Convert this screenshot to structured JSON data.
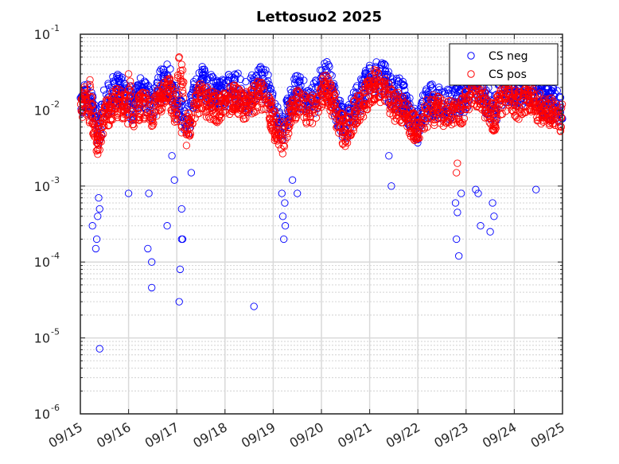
{
  "chart_data": {
    "type": "scatter",
    "title": "Lettosuo2 2025",
    "xlabel": "",
    "ylabel": "",
    "x_ticks": [
      "09/15",
      "09/16",
      "09/17",
      "09/18",
      "09/19",
      "09/20",
      "09/21",
      "09/22",
      "09/23",
      "09/24",
      "09/25"
    ],
    "y_scale": "log",
    "y_ticks": [
      {
        "base": "10",
        "exp": "-6",
        "value": 1e-06
      },
      {
        "base": "10",
        "exp": "-5",
        "value": 1e-05
      },
      {
        "base": "10",
        "exp": "-4",
        "value": 0.0001
      },
      {
        "base": "10",
        "exp": "-3",
        "value": 0.001
      },
      {
        "base": "10",
        "exp": "-2",
        "value": 0.01
      },
      {
        "base": "10",
        "exp": "-1",
        "value": 0.1
      }
    ],
    "xlim": [
      "09/15",
      "09/25"
    ],
    "ylim": [
      1e-06,
      0.1
    ],
    "grid": true,
    "legend_position": "top-right",
    "marker": "open-circle",
    "series": [
      {
        "name": "CS neg",
        "color": "#0000ff",
        "x_days": [
          0.05,
          0.1,
          0.15,
          0.2,
          0.25,
          0.3,
          0.35,
          0.4,
          0.45,
          0.5,
          0.6,
          0.7,
          0.8,
          0.9,
          1.0,
          1.1,
          1.2,
          1.3,
          1.4,
          1.5,
          1.6,
          1.7,
          1.8,
          1.9,
          2.0,
          2.1,
          2.2,
          2.3,
          2.4,
          2.5,
          2.6,
          2.7,
          2.8,
          2.9,
          3.0,
          3.1,
          3.2,
          3.3,
          3.4,
          3.5,
          3.6,
          3.7,
          3.8,
          3.9,
          4.0,
          4.1,
          4.2,
          4.3,
          4.4,
          4.5,
          4.6,
          4.7,
          4.8,
          4.9,
          5.0,
          5.1,
          5.2,
          5.3,
          5.4,
          5.5,
          5.6,
          5.7,
          5.8,
          5.9,
          6.0,
          6.1,
          6.2,
          6.3,
          6.4,
          6.5,
          6.6,
          6.7,
          6.8,
          6.9,
          7.0,
          7.1,
          7.2,
          7.3,
          7.4,
          7.5,
          7.6,
          7.7,
          7.8,
          7.9,
          8.0,
          8.1,
          8.2,
          8.3,
          8.4,
          8.5,
          8.6,
          8.7,
          8.8,
          8.9,
          9.0,
          9.1,
          9.2,
          9.3,
          9.4,
          9.5,
          9.6,
          9.7,
          9.8,
          9.9,
          0.38,
          0.36,
          0.34,
          0.32,
          0.4,
          0.25,
          1.4,
          1.42,
          1.48,
          1.0,
          1.8,
          2.1,
          2.07,
          2.05,
          2.1,
          2.12,
          1.95,
          1.9,
          2.3,
          3.6,
          4.2,
          4.22,
          4.18,
          4.25,
          4.24,
          4.4,
          4.5,
          6.4,
          6.45,
          7.82,
          7.8,
          7.85,
          7.78,
          7.9,
          8.2,
          8.25,
          8.3,
          8.5,
          8.55,
          8.58,
          9.45
        ],
        "y": [
          0.015,
          0.018,
          0.016,
          0.013,
          0.011,
          0.008,
          0.005,
          0.004,
          0.009,
          0.012,
          0.015,
          0.018,
          0.02,
          0.016,
          0.013,
          0.012,
          0.015,
          0.018,
          0.014,
          0.012,
          0.018,
          0.022,
          0.028,
          0.02,
          0.012,
          0.008,
          0.006,
          0.012,
          0.018,
          0.025,
          0.02,
          0.018,
          0.016,
          0.015,
          0.017,
          0.019,
          0.021,
          0.018,
          0.016,
          0.015,
          0.02,
          0.024,
          0.022,
          0.02,
          0.01,
          0.007,
          0.005,
          0.01,
          0.015,
          0.018,
          0.016,
          0.015,
          0.014,
          0.016,
          0.022,
          0.028,
          0.02,
          0.012,
          0.008,
          0.006,
          0.009,
          0.012,
          0.015,
          0.02,
          0.025,
          0.03,
          0.028,
          0.025,
          0.02,
          0.016,
          0.018,
          0.014,
          0.01,
          0.008,
          0.006,
          0.01,
          0.012,
          0.014,
          0.013,
          0.012,
          0.011,
          0.013,
          0.015,
          0.014,
          0.016,
          0.022,
          0.025,
          0.02,
          0.015,
          0.012,
          0.01,
          0.016,
          0.02,
          0.022,
          0.018,
          0.015,
          0.02,
          0.022,
          0.018,
          0.015,
          0.013,
          0.012,
          0.014,
          0.011,
          0.0007,
          0.0004,
          0.0002,
          0.00015,
          0.0005,
          0.0003,
          0.00015,
          0.0008,
          0.0001,
          0.0008,
          0.0003,
          0.0002,
          8e-05,
          3e-05,
          0.0005,
          0.0002,
          0.0012,
          0.0025,
          0.0015,
          2.6e-05,
          0.0004,
          0.0002,
          0.0008,
          0.0003,
          0.0006,
          0.0012,
          0.0008,
          0.0025,
          0.001,
          0.00045,
          0.0002,
          0.00012,
          0.0006,
          0.0008,
          0.0009,
          0.0008,
          0.0003,
          0.00025,
          0.0006,
          0.0004,
          0.0009
        ],
        "outliers_x_days": [
          1.48,
          0.4
        ],
        "outliers_y": [
          4.6e-05,
          7.2e-06
        ]
      },
      {
        "name": "CS pos",
        "color": "#ff0000",
        "x_days": [
          0.05,
          0.1,
          0.15,
          0.2,
          0.25,
          0.3,
          0.35,
          0.4,
          0.45,
          0.5,
          0.6,
          0.7,
          0.8,
          0.9,
          1.0,
          1.1,
          1.2,
          1.3,
          1.4,
          1.5,
          1.6,
          1.7,
          1.8,
          1.9,
          2.0,
          2.1,
          2.2,
          2.3,
          2.4,
          2.5,
          2.6,
          2.7,
          2.8,
          2.9,
          3.0,
          3.1,
          3.2,
          3.3,
          3.4,
          3.5,
          3.6,
          3.7,
          3.8,
          3.9,
          4.0,
          4.1,
          4.2,
          4.3,
          4.4,
          4.5,
          4.6,
          4.7,
          4.8,
          4.9,
          5.0,
          5.1,
          5.2,
          5.3,
          5.4,
          5.5,
          5.6,
          5.7,
          5.8,
          5.9,
          6.0,
          6.1,
          6.2,
          6.3,
          6.4,
          6.5,
          6.6,
          6.7,
          6.8,
          6.9,
          7.0,
          7.1,
          7.2,
          7.3,
          7.4,
          7.5,
          7.6,
          7.7,
          7.8,
          7.9,
          8.0,
          8.1,
          8.2,
          8.3,
          8.4,
          8.5,
          8.6,
          8.7,
          8.8,
          8.9,
          9.0,
          9.1,
          9.2,
          9.3,
          9.4,
          9.5,
          9.6,
          9.7,
          9.8,
          9.9,
          2.05,
          2.08,
          2.1,
          0.2,
          1.0,
          7.8,
          7.82
        ],
        "y": [
          0.012,
          0.014,
          0.012,
          0.01,
          0.008,
          0.006,
          0.004,
          0.003,
          0.006,
          0.008,
          0.01,
          0.012,
          0.013,
          0.011,
          0.009,
          0.008,
          0.01,
          0.012,
          0.01,
          0.009,
          0.012,
          0.016,
          0.02,
          0.014,
          0.009,
          0.006,
          0.005,
          0.008,
          0.012,
          0.015,
          0.013,
          0.012,
          0.011,
          0.01,
          0.012,
          0.014,
          0.016,
          0.013,
          0.011,
          0.011,
          0.014,
          0.016,
          0.015,
          0.012,
          0.007,
          0.005,
          0.004,
          0.007,
          0.01,
          0.012,
          0.011,
          0.01,
          0.01,
          0.012,
          0.016,
          0.02,
          0.014,
          0.009,
          0.006,
          0.005,
          0.007,
          0.009,
          0.011,
          0.014,
          0.018,
          0.022,
          0.02,
          0.018,
          0.014,
          0.011,
          0.012,
          0.01,
          0.008,
          0.006,
          0.005,
          0.008,
          0.009,
          0.01,
          0.01,
          0.009,
          0.009,
          0.01,
          0.011,
          0.01,
          0.012,
          0.016,
          0.018,
          0.014,
          0.011,
          0.009,
          0.008,
          0.012,
          0.014,
          0.016,
          0.013,
          0.011,
          0.014,
          0.016,
          0.013,
          0.011,
          0.01,
          0.009,
          0.01,
          0.008,
          0.05,
          0.03,
          0.04,
          0.025,
          0.03,
          0.0015,
          0.002
        ]
      }
    ]
  }
}
